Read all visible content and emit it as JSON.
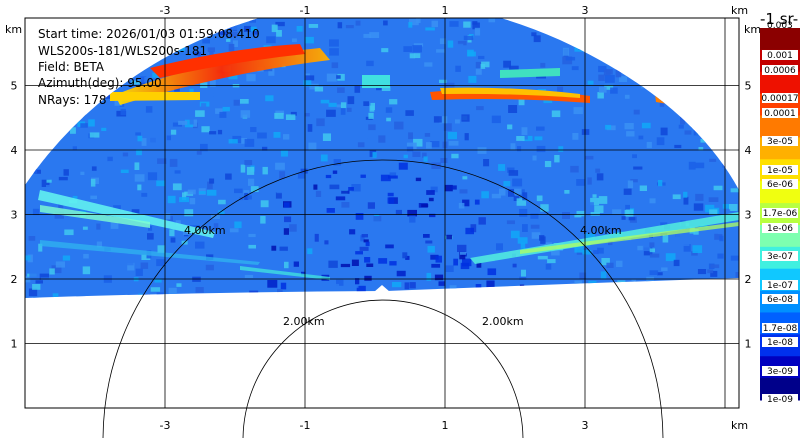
{
  "info": {
    "start_time": "Start time: 2026/01/03 01:59:08.410",
    "instrument": "WLS200s-181/WLS200s-181",
    "field": "Field: BETA",
    "azimuth": "Azimuth(deg): 95.00",
    "nrays": "NRays: 178"
  },
  "axes": {
    "x_unit": "km",
    "y_unit": "km",
    "x_ticks": [
      {
        "value": -3,
        "label": "-3"
      },
      {
        "value": -1,
        "label": "-1"
      },
      {
        "value": 1,
        "label": "1"
      },
      {
        "value": 3,
        "label": "3"
      }
    ],
    "y_ticks": [
      {
        "value": 1,
        "label": "1"
      },
      {
        "value": 2,
        "label": "2"
      },
      {
        "value": 3,
        "label": "3"
      },
      {
        "value": 4,
        "label": "4"
      },
      {
        "value": 5,
        "label": "5"
      }
    ]
  },
  "range_rings": [
    {
      "km": 2,
      "label": "2.00km"
    },
    {
      "km": 4,
      "label": "4.00km"
    }
  ],
  "colorbar": {
    "unit_fragment": "-1 sr-",
    "top_label": "0.003",
    "labels": [
      "0.001",
      "0.0006",
      "0.00017",
      "0.0001",
      "3e-05",
      "1e-05",
      "6e-06",
      "1.7e-06",
      "1e-06",
      "3e-07",
      "1e-07",
      "6e-08",
      "1.7e-08",
      "1e-08",
      "3e-09",
      "1e-09"
    ],
    "colors": [
      "#8b0000",
      "#c40000",
      "#ee1100",
      "#ff4000",
      "#ff7a00",
      "#ffb000",
      "#ffe000",
      "#f0ff10",
      "#b8ff40",
      "#7dffb0",
      "#40f0e0",
      "#10c8ff",
      "#0090ff",
      "#0060ff",
      "#0030ee",
      "#0000c0",
      "#00008a"
    ]
  }
}
